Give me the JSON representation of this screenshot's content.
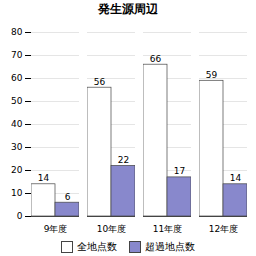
{
  "chart_data": {
    "type": "bar",
    "title": "発生源周辺",
    "categories": [
      "9年度",
      "10年度",
      "11年度",
      "12年度"
    ],
    "series": [
      {
        "name": "全地点数",
        "color": "#ffffff",
        "values": [
          14,
          56,
          66,
          59
        ]
      },
      {
        "name": "超過地点数",
        "color": "#8888cc",
        "values": [
          6,
          22,
          17,
          14
        ]
      }
    ],
    "ylim": [
      0,
      80
    ],
    "yticks": [
      0,
      10,
      20,
      30,
      40,
      50,
      60,
      70,
      80
    ],
    "grid": true,
    "legend": "bottom",
    "data_labels": true
  }
}
